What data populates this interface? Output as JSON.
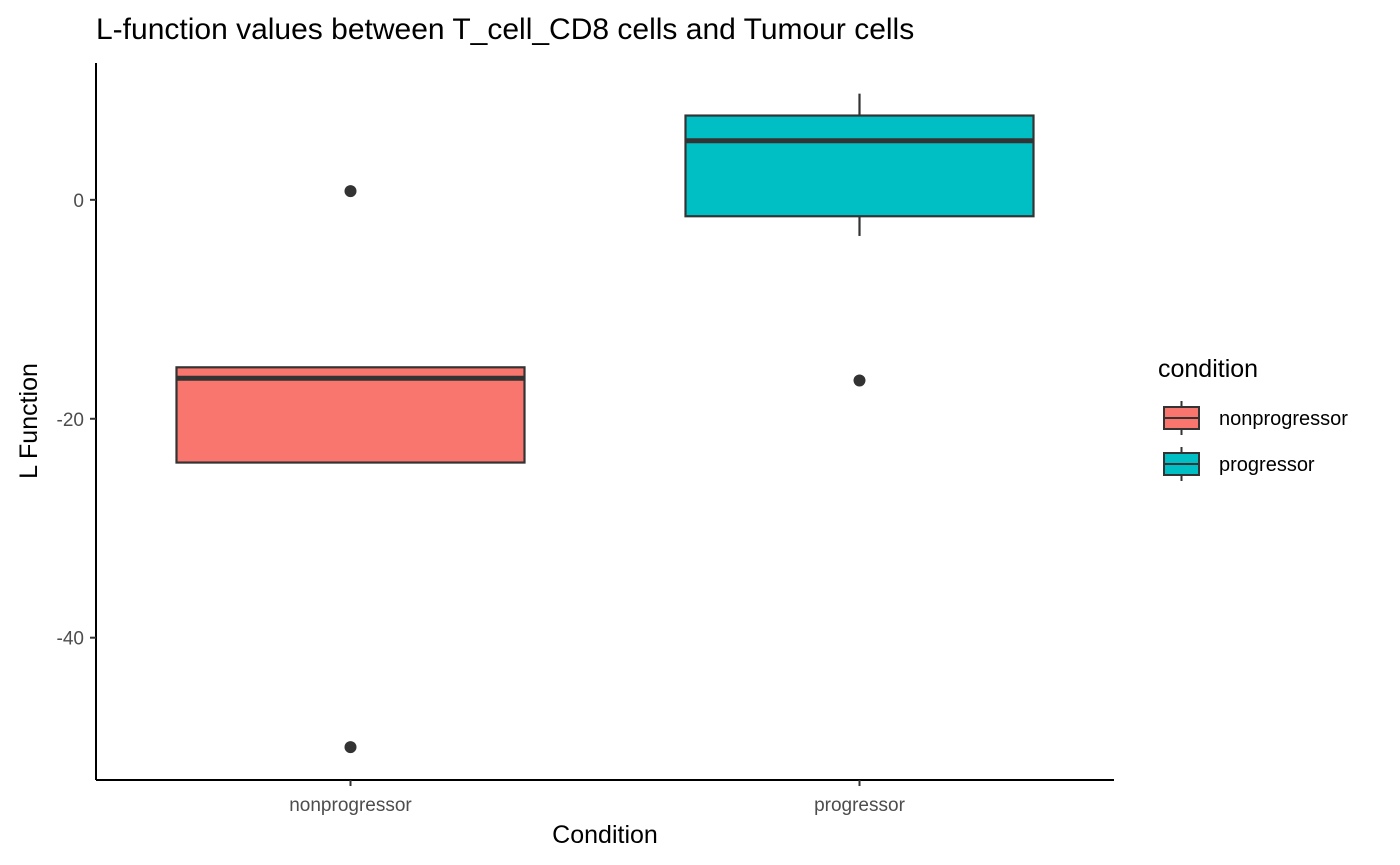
{
  "chart_data": {
    "type": "boxplot",
    "title": "L-function values between T_cell_CD8 cells and Tumour cells",
    "xlabel": "Condition",
    "ylabel": "L Function",
    "categories": [
      "nonprogressor",
      "progressor"
    ],
    "y_ticks": [
      0,
      -20,
      -40
    ],
    "ylim": [
      -53,
      12.5
    ],
    "grid": false,
    "legend": {
      "title": "condition",
      "position": "right",
      "entries": [
        "nonprogressor",
        "progressor"
      ]
    },
    "boxes": [
      {
        "category": "nonprogressor",
        "q1": -24,
        "median": -16.3,
        "q3": -15.3,
        "whisker_low": -24,
        "whisker_high": -15.3,
        "outliers": [
          0.8,
          -50
        ],
        "color": "#F8766D"
      },
      {
        "category": "progressor",
        "q1": -1.5,
        "median": 5.4,
        "q3": 7.7,
        "whisker_low": -3.3,
        "whisker_high": 9.7,
        "outliers": [
          -16.5
        ],
        "color": "#00BFC4"
      }
    ]
  }
}
